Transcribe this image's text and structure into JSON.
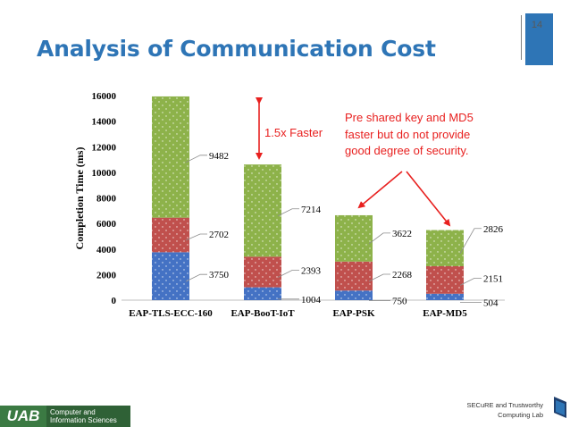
{
  "page_number": "14",
  "title": "Analysis of Communication Cost",
  "annotations": {
    "speedup": "1.5x Faster",
    "psk_note_lines": [
      "Pre shared key and MD5",
      "faster but do not provide",
      "good degree of security."
    ]
  },
  "footer": {
    "logo_text": "UAB",
    "department_lines": [
      "Computer and",
      "Information Sciences"
    ],
    "lab_lines": [
      "SECuRE and Trustworthy",
      "Computing Lab"
    ]
  },
  "colors": {
    "title": "#2e75b6",
    "annotation": "#e8201f",
    "series_bottom": "#4472c4",
    "series_middle": "#c0504d",
    "series_top": "#8db24a"
  },
  "chart_data": {
    "type": "bar",
    "stacked": true,
    "title": "",
    "xlabel": "",
    "ylabel": "Completion Time (ms)",
    "ylim": [
      0,
      16000
    ],
    "yticks": [
      "0",
      "2000",
      "4000",
      "6000",
      "8000",
      "10000",
      "12000",
      "14000",
      "16000"
    ],
    "categories": [
      "EAP-TLS-ECC-160",
      "EAP-BooT-IoT",
      "EAP-PSK",
      "EAP-MD5"
    ],
    "series": [
      {
        "name": "Bottom segment",
        "values": [
          3750,
          1004,
          750,
          504
        ]
      },
      {
        "name": "Middle segment",
        "values": [
          2702,
          2393,
          2268,
          2151
        ]
      },
      {
        "name": "Top segment",
        "values": [
          9482,
          7214,
          3622,
          2826
        ]
      }
    ]
  }
}
